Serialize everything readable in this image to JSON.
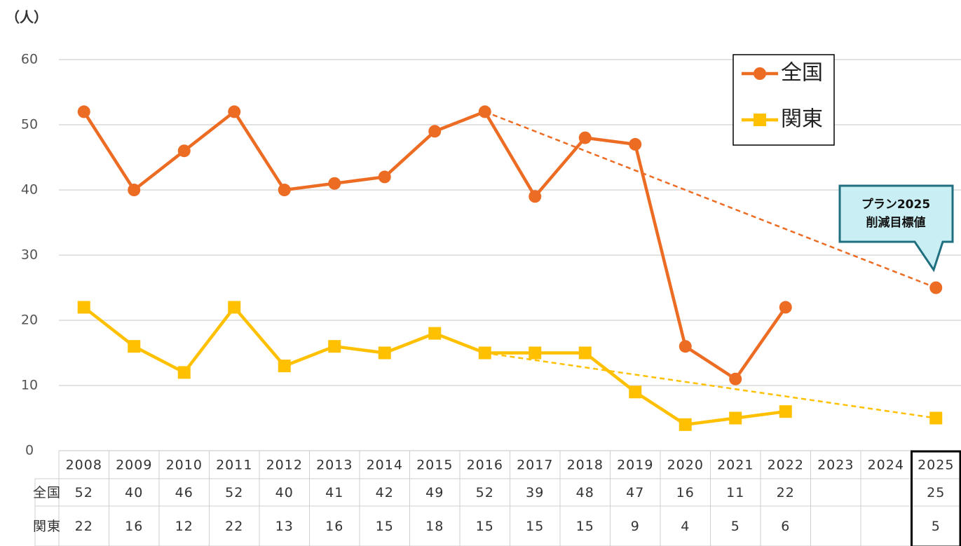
{
  "chart_data": {
    "type": "line",
    "y_label": "（人）",
    "categories": [
      "2008",
      "2009",
      "2010",
      "2011",
      "2012",
      "2013",
      "2014",
      "2015",
      "2016",
      "2017",
      "2018",
      "2019",
      "2020",
      "2021",
      "2022",
      "2023",
      "2024",
      "2025"
    ],
    "series": [
      {
        "name": "全国",
        "color": "#ED6C24",
        "marker": "circle",
        "values": [
          52,
          40,
          46,
          52,
          40,
          41,
          42,
          49,
          52,
          39,
          48,
          47,
          16,
          11,
          22,
          null,
          null,
          25
        ]
      },
      {
        "name": "関東",
        "color": "#FFC000",
        "marker": "square",
        "values": [
          22,
          16,
          12,
          22,
          13,
          16,
          15,
          18,
          15,
          15,
          15,
          9,
          4,
          5,
          6,
          null,
          null,
          5
        ]
      }
    ],
    "ylim": [
      0,
      60
    ],
    "yticks": [
      0,
      10,
      20,
      30,
      40,
      50,
      60
    ],
    "grid": true,
    "legend": "top-right",
    "annotation": [
      "プラン2025",
      "削減目標値"
    ]
  }
}
